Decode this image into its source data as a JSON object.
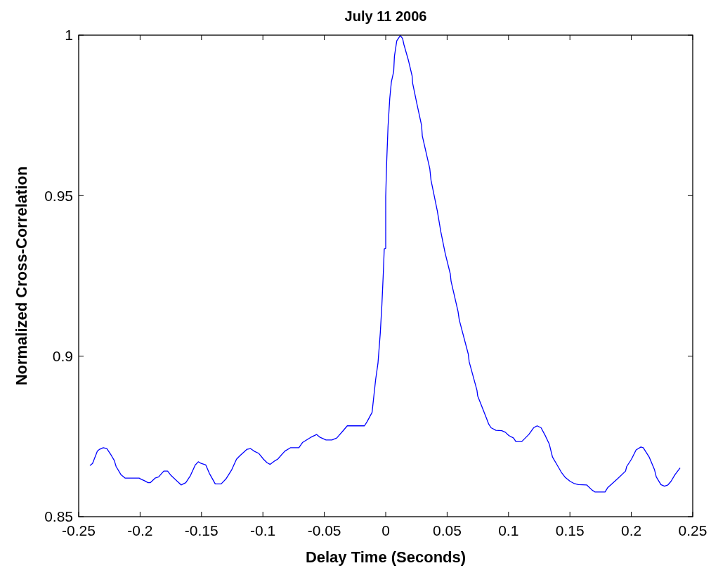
{
  "chart_data": {
    "type": "line",
    "title": "July 11 2006",
    "xlabel": "Delay Time (Seconds)",
    "ylabel": "Normalized Cross-Correlation",
    "x": [
      -0.2406,
      -0.2387,
      -0.2348,
      -0.2329,
      -0.23,
      -0.2271,
      -0.2233,
      -0.221,
      -0.2195,
      -0.2156,
      -0.2121,
      -0.2008,
      -0.1993,
      -0.1964,
      -0.1935,
      -0.1916,
      -0.1878,
      -0.1849,
      -0.1807,
      -0.1776,
      -0.1747,
      -0.1666,
      -0.1628,
      -0.159,
      -0.1551,
      -0.1526,
      -0.1503,
      -0.1465,
      -0.1436,
      -0.1388,
      -0.134,
      -0.1302,
      -0.1254,
      -0.1215,
      -0.1187,
      -0.1129,
      -0.11,
      -0.1071,
      -0.1033,
      -0.0995,
      -0.0966,
      -0.0941,
      -0.0899,
      -0.088,
      -0.0822,
      -0.0774,
      -0.0707,
      -0.0678,
      -0.0611,
      -0.0563,
      -0.0534,
      -0.0486,
      -0.0438,
      -0.0399,
      -0.0342,
      -0.0313,
      -0.0173,
      -0.015,
      -0.0111,
      -0.0082,
      -0.0063,
      -0.0044,
      -0.0031,
      -0.0019,
      -0.0012,
      0,
      0,
      0.0008,
      0.0019,
      0.0033,
      0.0046,
      0.0065,
      0.0071,
      0.009,
      0.0119,
      0.0138,
      0.0148,
      0.0186,
      0.0215,
      0.0219,
      0.0253,
      0.0292,
      0.0298,
      0.0359,
      0.0369,
      0.042,
      0.0449,
      0.0484,
      0.0526,
      0.0532,
      0.0589,
      0.0599,
      0.0672,
      0.068,
      0.0743,
      0.0749,
      0.082,
      0.0839,
      0.0858,
      0.0897,
      0.0945,
      0.0974,
      0.1002,
      0.1041,
      0.106,
      0.1108,
      0.1165,
      0.1204,
      0.1233,
      0.1265,
      0.13,
      0.1332,
      0.1358,
      0.1396,
      0.1429,
      0.1463,
      0.1502,
      0.1531,
      0.1569,
      0.1636,
      0.168,
      0.1703,
      0.1786,
      0.1809,
      0.1885,
      0.1953,
      0.1962,
      0.2001,
      0.2039,
      0.2078,
      0.2097,
      0.2145,
      0.2189,
      0.2203,
      0.2241,
      0.227,
      0.2298,
      0.2323,
      0.2356,
      0.2395
    ],
    "series": [
      {
        "color": "#0000ff",
        "values": [
          0.866,
          0.8666,
          0.8704,
          0.871,
          0.8715,
          0.8712,
          0.869,
          0.8675,
          0.8656,
          0.8631,
          0.862,
          0.862,
          0.8617,
          0.8612,
          0.8606,
          0.8606,
          0.862,
          0.8624,
          0.8642,
          0.8642,
          0.8628,
          0.8599,
          0.8606,
          0.8628,
          0.8661,
          0.8671,
          0.8666,
          0.8661,
          0.8635,
          0.8602,
          0.8602,
          0.8617,
          0.8646,
          0.8679,
          0.869,
          0.871,
          0.8712,
          0.8704,
          0.8697,
          0.8679,
          0.8668,
          0.8663,
          0.8675,
          0.8679,
          0.8704,
          0.8715,
          0.8715,
          0.8731,
          0.8747,
          0.8756,
          0.8747,
          0.8739,
          0.8739,
          0.8745,
          0.877,
          0.8783,
          0.8783,
          0.8797,
          0.8825,
          0.8927,
          0.8978,
          0.9073,
          0.9161,
          0.9263,
          0.9334,
          0.9336,
          0.9497,
          0.9606,
          0.9716,
          0.9803,
          0.9854,
          0.9887,
          0.9934,
          0.9982,
          0.9999,
          0.9989,
          0.9971,
          0.992,
          0.9873,
          0.9851,
          0.9788,
          0.9719,
          0.9686,
          0.9584,
          0.9548,
          0.9453,
          0.9387,
          0.9321,
          0.9256,
          0.9234,
          0.9139,
          0.9113,
          0.9007,
          0.8982,
          0.8894,
          0.8876,
          0.8807,
          0.8788,
          0.8777,
          0.8769,
          0.8768,
          0.8763,
          0.8753,
          0.8745,
          0.8734,
          0.8734,
          0.8756,
          0.8777,
          0.8783,
          0.8777,
          0.8752,
          0.8726,
          0.8686,
          0.8661,
          0.8639,
          0.8622,
          0.861,
          0.8604,
          0.86,
          0.8599,
          0.8583,
          0.8577,
          0.8577,
          0.8591,
          0.8617,
          0.8642,
          0.8656,
          0.8679,
          0.8708,
          0.8717,
          0.8715,
          0.8686,
          0.8646,
          0.8624,
          0.86,
          0.8595,
          0.8599,
          0.861,
          0.8631,
          0.8651
        ]
      }
    ],
    "xlim": [
      -0.25,
      0.25
    ],
    "ylim": [
      0.85,
      1
    ],
    "xticks": [
      -0.25,
      -0.2,
      -0.15,
      -0.1,
      -0.05,
      0,
      0.05,
      0.1,
      0.15,
      0.2,
      0.25
    ],
    "yticks": [
      0.85,
      0.9,
      0.95,
      1
    ]
  }
}
